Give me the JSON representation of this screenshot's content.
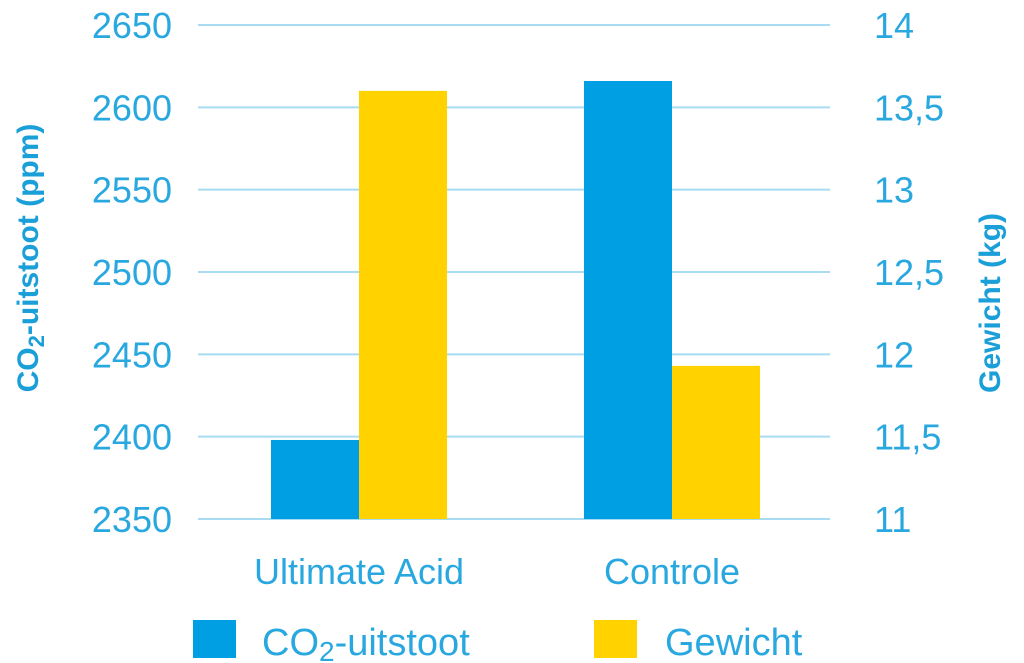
{
  "chart_data": {
    "type": "bar",
    "categories": [
      "Ultimate Acid",
      "Controle"
    ],
    "series": [
      {
        "name": "CO2-uitstoot",
        "axis": "left",
        "values": [
          2398,
          2616
        ]
      },
      {
        "name": "Gewicht",
        "axis": "right",
        "values": [
          13.6,
          11.93
        ]
      }
    ],
    "y_left": {
      "label": "CO2-uitstoot (ppm)",
      "range": [
        2350,
        2650
      ],
      "ticks": [
        "2650",
        "2600",
        "2550",
        "2500",
        "2450",
        "2400",
        "2350"
      ]
    },
    "y_right": {
      "label": "Gewicht (kg)",
      "range": [
        11,
        14
      ],
      "ticks": [
        "14",
        "13,5",
        "13",
        "12,5",
        "12",
        "11,5",
        "11"
      ]
    },
    "grid": true,
    "legend_position": "bottom"
  },
  "colors": {
    "co2": "#009fe3",
    "gewicht": "#ffd200",
    "text": "#29a8e0",
    "grid": "#a9dcf2"
  },
  "legend": [
    {
      "name": "CO2-uitstoot",
      "display_main": "CO",
      "display_sub": "2",
      "display_rest": "-uitstoot"
    },
    {
      "name": "Gewicht",
      "display_main": "Gewicht"
    }
  ],
  "axis_titles": {
    "left_main": "CO",
    "left_sub": "2",
    "left_rest": "-uitstoot (ppm)",
    "right": "Gewicht (kg)"
  }
}
